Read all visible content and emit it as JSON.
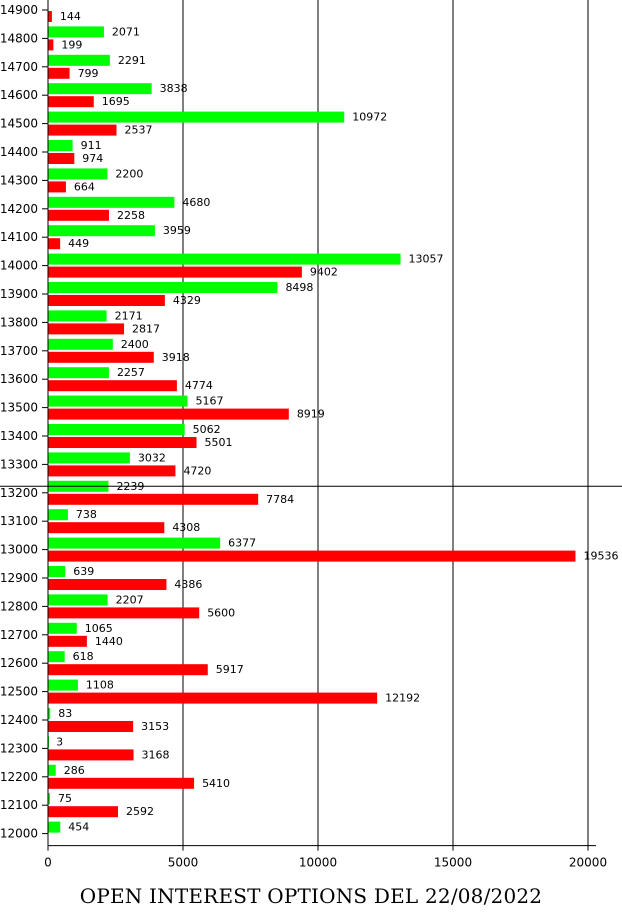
{
  "chart_data": {
    "type": "bar",
    "orientation": "horizontal",
    "title": "OPEN INTEREST OPTIONS DEL 22/08/2022",
    "categories": [
      "14900",
      "14800",
      "14700",
      "14600",
      "14500",
      "14400",
      "14300",
      "14200",
      "14100",
      "14000",
      "13900",
      "13800",
      "13700",
      "13600",
      "13500",
      "13400",
      "13300",
      "13200",
      "13100",
      "13000",
      "12900",
      "12800",
      "12700",
      "12600",
      "12500",
      "12400",
      "12300",
      "12200",
      "12100",
      "12000"
    ],
    "series": [
      {
        "color": "#00ff00",
        "values": [
          null,
          2071,
          2291,
          3838,
          10972,
          911,
          2200,
          4680,
          3959,
          13057,
          8498,
          2171,
          2400,
          2257,
          5167,
          5062,
          3032,
          2239,
          738,
          6377,
          639,
          2207,
          1065,
          618,
          1108,
          83,
          3,
          286,
          75,
          454
        ]
      },
      {
        "color": "#ff0000",
        "values": [
          144,
          199,
          799,
          1695,
          2537,
          974,
          664,
          2258,
          449,
          9402,
          4329,
          2817,
          3918,
          4774,
          8919,
          5501,
          4720,
          7784,
          4308,
          19536,
          4386,
          5600,
          1440,
          5917,
          12192,
          3153,
          3168,
          5410,
          2592,
          null
        ]
      }
    ],
    "x_ticks": [
      0,
      5000,
      10000,
      15000,
      20000
    ],
    "xlim": [
      0,
      21500
    ],
    "grid": "vertical",
    "reference_line_at_category": "13200",
    "xlabel": "",
    "ylabel": ""
  }
}
